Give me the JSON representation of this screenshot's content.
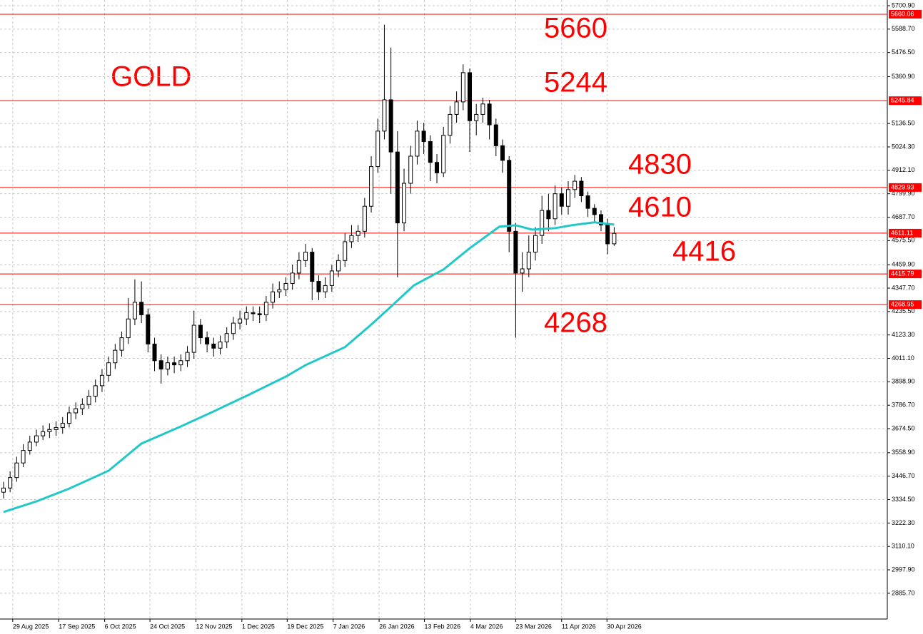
{
  "chart_data": {
    "type": "candlestick",
    "title": "GOLD",
    "title_color": "#ff0000",
    "annotations": [
      "5660",
      "5244",
      "4830",
      "4610",
      "4416",
      "4268"
    ],
    "ylim": [
      2762.3,
      5728.2
    ],
    "yticks": [
      {
        "value": 5700.9,
        "label": "5700.90"
      },
      {
        "value": 5588.7,
        "label": "5588.70"
      },
      {
        "value": 5476.5,
        "label": "5476.50"
      },
      {
        "value": 5360.9,
        "label": "5360.90"
      },
      {
        "value": 5136.5,
        "label": "5136.50"
      },
      {
        "value": 5024.3,
        "label": "5024.30"
      },
      {
        "value": 4912.1,
        "label": "4912.10"
      },
      {
        "value": 4799.9,
        "label": "4799.90"
      },
      {
        "value": 4687.7,
        "label": "4687.70"
      },
      {
        "value": 4575.5,
        "label": "4575.50"
      },
      {
        "value": 4459.9,
        "label": "4459.90"
      },
      {
        "value": 4347.7,
        "label": "4347.70"
      },
      {
        "value": 4235.5,
        "label": "4235.50"
      },
      {
        "value": 4123.3,
        "label": "4123.30"
      },
      {
        "value": 4011.1,
        "label": "4011.10"
      },
      {
        "value": 3898.9,
        "label": "3898.90"
      },
      {
        "value": 3786.7,
        "label": "3786.70"
      },
      {
        "value": 3674.5,
        "label": "3674.50"
      },
      {
        "value": 3558.9,
        "label": "3558.90"
      },
      {
        "value": 3446.7,
        "label": "3446.70"
      },
      {
        "value": 3334.5,
        "label": "3334.50"
      },
      {
        "value": 3222.3,
        "label": "3222.30"
      },
      {
        "value": 3110.1,
        "label": "3110.10"
      },
      {
        "value": 2997.9,
        "label": "2997.90"
      },
      {
        "value": 2885.7,
        "label": "2885.70"
      }
    ],
    "xlim": [
      -0.54,
      134.6
    ],
    "xticks": [
      {
        "value": 1.4,
        "label": "29 Aug 2025"
      },
      {
        "value": 8.4,
        "label": "17 Sep 2025"
      },
      {
        "value": 15.4,
        "label": "6 Oct 2025"
      },
      {
        "value": 22.3,
        "label": "24 Oct 2025"
      },
      {
        "value": 29.3,
        "label": "12 Nov 2025"
      },
      {
        "value": 36.3,
        "label": "1 Dec 2025"
      },
      {
        "value": 43.2,
        "label": "19 Dec 2025"
      },
      {
        "value": 50.2,
        "label": "7 Jan 2026"
      },
      {
        "value": 57.2,
        "label": "26 Jan 2026"
      },
      {
        "value": 64.1,
        "label": "13 Feb 2026"
      },
      {
        "value": 71.1,
        "label": "4 Mar 2026"
      },
      {
        "value": 78.0,
        "label": "23 Mar 2026"
      },
      {
        "value": 85.0,
        "label": "11 Apr 2026"
      },
      {
        "value": 91.9,
        "label": "30 Apr 2026"
      }
    ],
    "grid": true,
    "levels": [
      5660.06,
      5245.84,
      4829.93,
      4611.11,
      4415.79,
      4268.95
    ],
    "level_color": "#ff0000",
    "open": [
      3370,
      3390,
      3440,
      3510,
      3570,
      3610,
      3640,
      3660,
      3670,
      3680,
      3700,
      3750,
      3770,
      3790,
      3830,
      3880,
      3930,
      3990,
      4050,
      4110,
      4200,
      4280,
      4220,
      4080,
      4000,
      3960,
      3990,
      3980,
      4000,
      4040,
      4170,
      4110,
      4080,
      4060,
      4090,
      4130,
      4180,
      4200,
      4230,
      4225,
      4220,
      4280,
      4330,
      4340,
      4370,
      4420,
      4480,
      4520,
      4380,
      4330,
      4360,
      4430,
      4480,
      4570,
      4600,
      4620,
      4740,
      4930,
      5100,
      5250,
      5000,
      4660,
      4850,
      4980,
      5100,
      5050,
      4950,
      4900,
      5080,
      5180,
      5240,
      5380,
      5150,
      5180,
      5230,
      5130,
      5030,
      4960,
      4620,
      4420,
      4440,
      4520,
      4600,
      4720,
      4680,
      4800,
      4740,
      4820,
      4860,
      4790,
      4730,
      4700,
      4650,
      4560
    ],
    "high": [
      3420,
      3470,
      3540,
      3600,
      3640,
      3670,
      3690,
      3700,
      3710,
      3730,
      3780,
      3800,
      3820,
      3860,
      3910,
      3960,
      4020,
      4080,
      4140,
      4300,
      4390,
      4380,
      4250,
      4110,
      4030,
      4020,
      4020,
      4030,
      4070,
      4240,
      4200,
      4140,
      4110,
      4120,
      4160,
      4210,
      4240,
      4260,
      4260,
      4260,
      4310,
      4370,
      4380,
      4400,
      4460,
      4520,
      4560,
      4540,
      4410,
      4400,
      4460,
      4510,
      4610,
      4650,
      4650,
      4780,
      4980,
      5160,
      5610,
      5500,
      5100,
      4920,
      5030,
      5150,
      5140,
      5080,
      4990,
      5120,
      5220,
      5290,
      5420,
      5400,
      5230,
      5260,
      5250,
      5160,
      5060,
      4980,
      4660,
      4520,
      4600,
      4640,
      4790,
      4800,
      4840,
      4830,
      4860,
      4890,
      4880,
      4810,
      4750,
      4720,
      4680,
      4640
    ],
    "low": [
      3340,
      3370,
      3420,
      3490,
      3550,
      3590,
      3620,
      3630,
      3640,
      3650,
      3680,
      3720,
      3740,
      3770,
      3800,
      3850,
      3900,
      3960,
      4020,
      4080,
      4170,
      4180,
      4040,
      3950,
      3890,
      3930,
      3940,
      3950,
      3970,
      4010,
      4080,
      4040,
      4020,
      4030,
      4060,
      4100,
      4150,
      4170,
      4190,
      4180,
      4190,
      4250,
      4300,
      4310,
      4340,
      4390,
      4450,
      4290,
      4290,
      4300,
      4330,
      4400,
      4450,
      4540,
      4570,
      4590,
      4710,
      4900,
      5060,
      4800,
      4400,
      4620,
      4800,
      4940,
      4990,
      4860,
      4850,
      4880,
      5040,
      5140,
      5200,
      5000,
      5080,
      5140,
      5060,
      4980,
      4900,
      4520,
      4110,
      4330,
      4400,
      4480,
      4560,
      4620,
      4650,
      4700,
      4700,
      4780,
      4760,
      4690,
      4660,
      4620,
      4510,
      4550
    ],
    "close": [
      3390,
      3440,
      3510,
      3570,
      3610,
      3640,
      3660,
      3670,
      3680,
      3700,
      3750,
      3770,
      3790,
      3830,
      3880,
      3930,
      3990,
      4050,
      4110,
      4200,
      4280,
      4220,
      4080,
      4000,
      3960,
      3990,
      3980,
      4000,
      4040,
      4170,
      4110,
      4080,
      4060,
      4090,
      4130,
      4180,
      4200,
      4230,
      4225,
      4220,
      4280,
      4330,
      4340,
      4370,
      4420,
      4480,
      4520,
      4380,
      4330,
      4360,
      4430,
      4480,
      4570,
      4600,
      4620,
      4740,
      4930,
      5100,
      5250,
      5000,
      4660,
      4850,
      4980,
      5100,
      5050,
      4950,
      4900,
      5080,
      5180,
      5240,
      5380,
      5150,
      5180,
      5230,
      5130,
      5030,
      4960,
      4620,
      4420,
      4440,
      4520,
      4600,
      4720,
      4680,
      4800,
      4740,
      4820,
      4860,
      4790,
      4730,
      4700,
      4650,
      4560,
      4610
    ],
    "overlays": [
      {
        "type": "line",
        "color": "#22c8c8",
        "x": [
          0,
          5,
          10,
          16,
          21,
          27,
          32,
          37.5,
          43,
          46,
          52,
          56,
          59,
          62.5,
          67,
          71,
          75.5,
          78,
          80.5,
          84,
          86.5,
          90,
          93
        ],
        "values": [
          3275,
          3326,
          3387,
          3473,
          3603,
          3685,
          3757,
          3839,
          3924,
          3979,
          4065,
          4173,
          4259,
          4361,
          4437,
          4539,
          4642,
          4649,
          4628,
          4635,
          4649,
          4663,
          4652
        ]
      }
    ]
  }
}
